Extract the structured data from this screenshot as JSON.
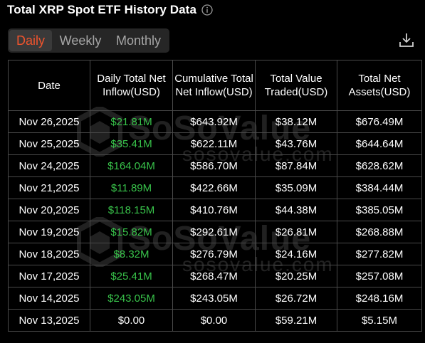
{
  "header": {
    "title": "Total XRP Spot ETF History Data",
    "info_icon": "info-circle-icon"
  },
  "tabs": [
    {
      "label": "Daily",
      "active": true
    },
    {
      "label": "Weekly",
      "active": false
    },
    {
      "label": "Monthly",
      "active": false
    }
  ],
  "toolbar": {
    "download_icon": "download-icon"
  },
  "colors": {
    "accent": "#f0542d",
    "positive": "#38c24a",
    "background": "#000000",
    "border": "#4a4a4a",
    "tab_bg": "#262626",
    "tab_active_bg": "#3a3a3a"
  },
  "table": {
    "columns": [
      "Date",
      "Daily Total Net Inflow(USD)",
      "Cumulative Total Net Inflow(USD)",
      "Total Value Traded(USD)",
      "Total Net Assets(USD)"
    ],
    "rows": [
      {
        "date": "Nov 26,2025",
        "inflow": "$21.81M",
        "inflow_positive": true,
        "cumulative": "$643.92M",
        "traded": "$38.12M",
        "assets": "$676.49M"
      },
      {
        "date": "Nov 25,2025",
        "inflow": "$35.41M",
        "inflow_positive": true,
        "cumulative": "$622.11M",
        "traded": "$43.76M",
        "assets": "$644.64M"
      },
      {
        "date": "Nov 24,2025",
        "inflow": "$164.04M",
        "inflow_positive": true,
        "cumulative": "$586.70M",
        "traded": "$87.84M",
        "assets": "$628.62M"
      },
      {
        "date": "Nov 21,2025",
        "inflow": "$11.89M",
        "inflow_positive": true,
        "cumulative": "$422.66M",
        "traded": "$35.09M",
        "assets": "$384.44M"
      },
      {
        "date": "Nov 20,2025",
        "inflow": "$118.15M",
        "inflow_positive": true,
        "cumulative": "$410.76M",
        "traded": "$44.38M",
        "assets": "$385.05M"
      },
      {
        "date": "Nov 19,2025",
        "inflow": "$15.82M",
        "inflow_positive": true,
        "cumulative": "$292.61M",
        "traded": "$26.81M",
        "assets": "$268.88M"
      },
      {
        "date": "Nov 18,2025",
        "inflow": "$8.32M",
        "inflow_positive": true,
        "cumulative": "$276.79M",
        "traded": "$24.16M",
        "assets": "$277.82M"
      },
      {
        "date": "Nov 17,2025",
        "inflow": "$25.41M",
        "inflow_positive": true,
        "cumulative": "$268.47M",
        "traded": "$20.25M",
        "assets": "$257.08M"
      },
      {
        "date": "Nov 14,2025",
        "inflow": "$243.05M",
        "inflow_positive": true,
        "cumulative": "$243.05M",
        "traded": "$26.72M",
        "assets": "$248.16M"
      },
      {
        "date": "Nov 13,2025",
        "inflow": "$0.00",
        "inflow_positive": false,
        "cumulative": "$0.00",
        "traded": "$59.21M",
        "assets": "$5.15M"
      }
    ]
  },
  "watermark": {
    "brand": "SoSoValue",
    "url": "sosovalue.com"
  }
}
